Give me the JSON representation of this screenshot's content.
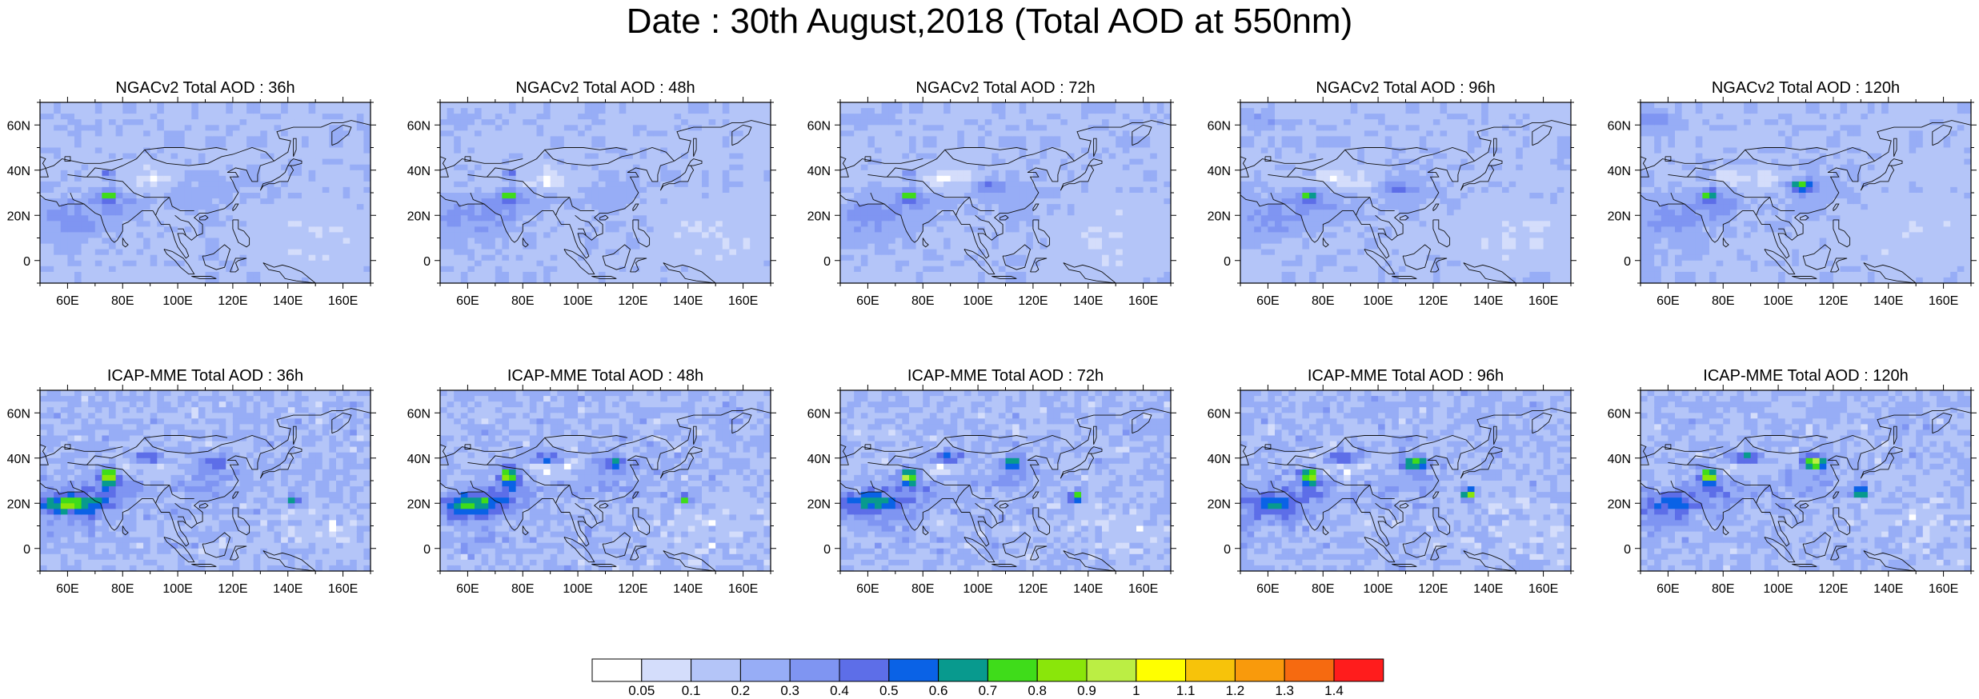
{
  "title": "Date : 30th August,2018 (Total AOD at 550nm)",
  "map_extent": {
    "lon": [
      50,
      170
    ],
    "lat": [
      -10,
      70
    ]
  },
  "x_ticks": [
    "60E",
    "80E",
    "100E",
    "120E",
    "140E",
    "160E"
  ],
  "y_ticks": [
    "60N",
    "40N",
    "20N",
    "0"
  ],
  "rows": [
    {
      "model": "NGACv2",
      "panels": [
        {
          "title": "NGACv2 Total AOD : 36h"
        },
        {
          "title": "NGACv2 Total AOD : 48h"
        },
        {
          "title": "NGACv2 Total AOD : 72h"
        },
        {
          "title": "NGACv2 Total AOD : 96h"
        },
        {
          "title": "NGACv2 Total AOD : 120h"
        }
      ]
    },
    {
      "model": "ICAP-MME",
      "panels": [
        {
          "title": "ICAP-MME Total AOD : 36h"
        },
        {
          "title": "ICAP-MME Total AOD : 48h"
        },
        {
          "title": "ICAP-MME Total AOD : 72h"
        },
        {
          "title": "ICAP-MME Total AOD : 96h"
        },
        {
          "title": "ICAP-MME Total AOD : 120h"
        }
      ]
    }
  ],
  "colorbar": {
    "labels": [
      "0.05",
      "0.1",
      "0.2",
      "0.3",
      "0.4",
      "0.5",
      "0.6",
      "0.7",
      "0.8",
      "0.9",
      "1",
      "1.1",
      "1.2",
      "1.3",
      "1.4"
    ],
    "colors": [
      "#ffffff",
      "#d4ddfb",
      "#b4c5f8",
      "#97adf6",
      "#7f95f2",
      "#5d6ee8",
      "#0a62e6",
      "#089a8e",
      "#3fdc1a",
      "#8ae60a",
      "#bbee44",
      "#ffff00",
      "#f7c30a",
      "#f99a0c",
      "#f66a10",
      "#ff1c1c"
    ]
  }
}
